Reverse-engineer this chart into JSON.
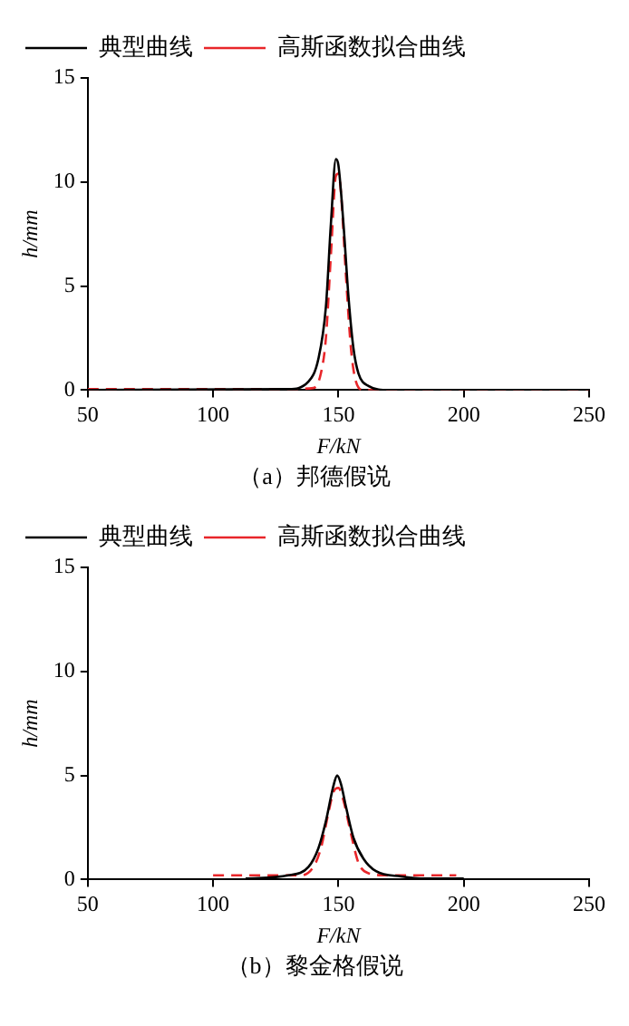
{
  "chart_data": [
    {
      "type": "line",
      "xlabel": "F/kN",
      "ylabel": "h/mm",
      "annotations": [
        "（a）邦德假说"
      ],
      "xlim": [
        50,
        250
      ],
      "xticks": [
        50,
        100,
        150,
        200,
        250
      ],
      "ylim": [
        0,
        15
      ],
      "yticks": [
        0,
        5,
        10,
        15
      ],
      "grid": false,
      "legend": "top left",
      "marker": "none",
      "series": [
        {
          "name": "典型曲线",
          "color": "#000000",
          "line_style": "solid",
          "x": [
            50,
            130,
            138,
            142,
            145,
            147,
            149,
            150,
            152,
            154,
            156,
            158,
            162,
            170,
            250
          ],
          "values": [
            0,
            0.05,
            0.4,
            1.5,
            4,
            8,
            11.1,
            10.8,
            8,
            4.5,
            2,
            0.8,
            0.2,
            0,
            0
          ]
        },
        {
          "name": "高斯函数拟合曲线",
          "color": "#e8262a",
          "line_style": "dashed",
          "x": [
            50,
            130,
            140,
            143,
            145,
            147,
            149,
            150,
            151,
            153,
            155,
            157,
            160,
            250
          ],
          "values": [
            0.05,
            0.05,
            0.1,
            0.8,
            2.5,
            6.5,
            10.3,
            10.4,
            9.5,
            5.5,
            2,
            0.4,
            0,
            0
          ]
        }
      ]
    },
    {
      "type": "line",
      "xlabel": "F/kN",
      "ylabel": "h/mm",
      "annotations": [
        "（b）黎金格假说"
      ],
      "xlim": [
        50,
        250
      ],
      "xticks": [
        50,
        100,
        150,
        200,
        250
      ],
      "ylim": [
        0,
        15
      ],
      "yticks": [
        0,
        5,
        10,
        15
      ],
      "grid": false,
      "legend": "top left",
      "marker": "none",
      "series": [
        {
          "name": "典型曲线",
          "color": "#000000",
          "line_style": "solid",
          "x": [
            113,
            130,
            138,
            142,
            145,
            148,
            149.5,
            151,
            153,
            156,
            160,
            165,
            175,
            185,
            200
          ],
          "values": [
            0.05,
            0.2,
            0.6,
            1.5,
            2.8,
            4.5,
            5,
            4.6,
            3.5,
            2,
            1,
            0.4,
            0.15,
            0.05,
            0.05
          ]
        },
        {
          "name": "高斯函数拟合曲线",
          "color": "#e8262a",
          "line_style": "dashed",
          "x": [
            100,
            120,
            135,
            140,
            143,
            146,
            148,
            150,
            152,
            155,
            158,
            162,
            170,
            197
          ],
          "values": [
            0.2,
            0.2,
            0.2,
            0.6,
            1.5,
            3.2,
            4.2,
            4.4,
            3.8,
            2.2,
            0.8,
            0.3,
            0.2,
            0.2
          ]
        }
      ]
    }
  ]
}
